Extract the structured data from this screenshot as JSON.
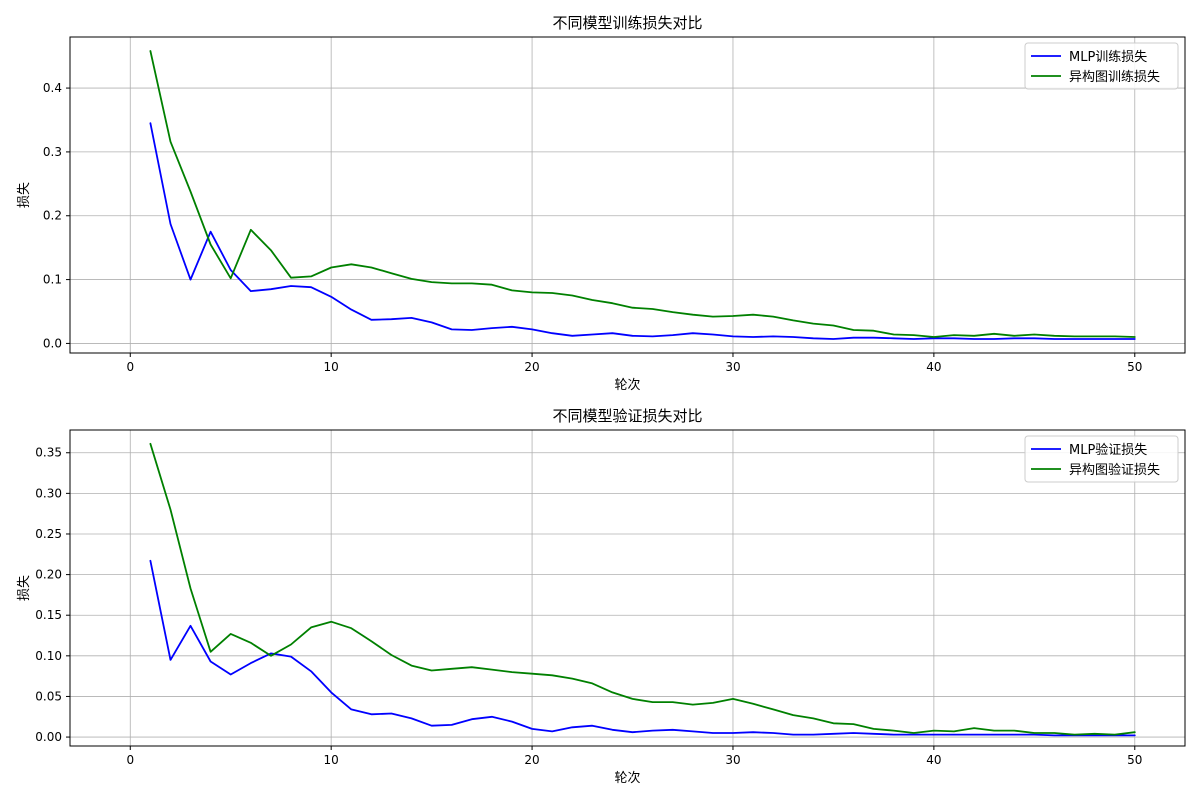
{
  "chart_data": [
    {
      "type": "line",
      "title": "不同模型训练损失对比",
      "xlabel": "轮次",
      "ylabel": "损失",
      "xlim": [
        -3,
        52.5
      ],
      "ylim": [
        -0.015,
        0.48
      ],
      "xticks": [
        0,
        10,
        20,
        30,
        40,
        50
      ],
      "yticks": [
        0.0,
        0.1,
        0.2,
        0.3,
        0.4
      ],
      "ytick_labels": [
        "0.0",
        "0.1",
        "0.2",
        "0.3",
        "0.4"
      ],
      "grid": true,
      "legend_position": "top-right",
      "x": [
        1,
        2,
        3,
        4,
        5,
        6,
        7,
        8,
        9,
        10,
        11,
        12,
        13,
        14,
        15,
        16,
        17,
        18,
        19,
        20,
        21,
        22,
        23,
        24,
        25,
        26,
        27,
        28,
        29,
        30,
        31,
        32,
        33,
        34,
        35,
        36,
        37,
        38,
        39,
        40,
        41,
        42,
        43,
        44,
        45,
        46,
        47,
        48,
        49,
        50
      ],
      "series": [
        {
          "name": "MLP训练损失",
          "color": "#0000ff",
          "values": [
            0.345,
            0.187,
            0.1,
            0.175,
            0.115,
            0.082,
            0.085,
            0.09,
            0.088,
            0.073,
            0.053,
            0.037,
            0.038,
            0.04,
            0.033,
            0.022,
            0.021,
            0.024,
            0.026,
            0.022,
            0.016,
            0.012,
            0.014,
            0.016,
            0.012,
            0.011,
            0.013,
            0.016,
            0.014,
            0.011,
            0.01,
            0.011,
            0.01,
            0.008,
            0.007,
            0.009,
            0.009,
            0.008,
            0.007,
            0.008,
            0.008,
            0.007,
            0.007,
            0.008,
            0.008,
            0.007,
            0.007,
            0.007,
            0.007,
            0.007
          ]
        },
        {
          "name": "异构图训练损失",
          "color": "#008000",
          "values": [
            0.458,
            0.316,
            0.238,
            0.155,
            0.102,
            0.178,
            0.146,
            0.103,
            0.105,
            0.119,
            0.124,
            0.119,
            0.11,
            0.101,
            0.096,
            0.094,
            0.094,
            0.092,
            0.083,
            0.08,
            0.079,
            0.075,
            0.068,
            0.063,
            0.056,
            0.054,
            0.049,
            0.045,
            0.042,
            0.043,
            0.045,
            0.042,
            0.036,
            0.031,
            0.028,
            0.021,
            0.02,
            0.014,
            0.013,
            0.01,
            0.013,
            0.012,
            0.015,
            0.012,
            0.014,
            0.012,
            0.011,
            0.011,
            0.011,
            0.01
          ]
        }
      ]
    },
    {
      "type": "line",
      "title": "不同模型验证损失对比",
      "xlabel": "轮次",
      "ylabel": "损失",
      "xlim": [
        -3,
        52.5
      ],
      "ylim": [
        -0.011,
        0.378
      ],
      "xticks": [
        0,
        10,
        20,
        30,
        40,
        50
      ],
      "yticks": [
        0.0,
        0.05,
        0.1,
        0.15,
        0.2,
        0.25,
        0.3,
        0.35
      ],
      "ytick_labels": [
        "0.00",
        "0.05",
        "0.10",
        "0.15",
        "0.20",
        "0.25",
        "0.30",
        "0.35"
      ],
      "grid": true,
      "legend_position": "top-right",
      "x": [
        1,
        2,
        3,
        4,
        5,
        6,
        7,
        8,
        9,
        10,
        11,
        12,
        13,
        14,
        15,
        16,
        17,
        18,
        19,
        20,
        21,
        22,
        23,
        24,
        25,
        26,
        27,
        28,
        29,
        30,
        31,
        32,
        33,
        34,
        35,
        36,
        37,
        38,
        39,
        40,
        41,
        42,
        43,
        44,
        45,
        46,
        47,
        48,
        49,
        50
      ],
      "series": [
        {
          "name": "MLP验证损失",
          "color": "#0000ff",
          "values": [
            0.217,
            0.095,
            0.137,
            0.093,
            0.077,
            0.091,
            0.103,
            0.099,
            0.081,
            0.055,
            0.034,
            0.028,
            0.029,
            0.023,
            0.014,
            0.015,
            0.022,
            0.025,
            0.019,
            0.01,
            0.007,
            0.012,
            0.014,
            0.009,
            0.006,
            0.008,
            0.009,
            0.007,
            0.005,
            0.005,
            0.006,
            0.005,
            0.003,
            0.003,
            0.004,
            0.005,
            0.004,
            0.003,
            0.003,
            0.003,
            0.003,
            0.003,
            0.003,
            0.003,
            0.003,
            0.002,
            0.002,
            0.002,
            0.002,
            0.002
          ]
        },
        {
          "name": "异构图验证损失",
          "color": "#008000",
          "values": [
            0.361,
            0.28,
            0.183,
            0.105,
            0.127,
            0.116,
            0.1,
            0.114,
            0.135,
            0.142,
            0.134,
            0.118,
            0.101,
            0.088,
            0.082,
            0.084,
            0.086,
            0.083,
            0.08,
            0.078,
            0.076,
            0.072,
            0.066,
            0.055,
            0.047,
            0.043,
            0.043,
            0.04,
            0.042,
            0.047,
            0.041,
            0.034,
            0.027,
            0.023,
            0.017,
            0.016,
            0.01,
            0.008,
            0.005,
            0.008,
            0.007,
            0.011,
            0.008,
            0.008,
            0.005,
            0.005,
            0.003,
            0.004,
            0.003,
            0.006
          ]
        }
      ]
    }
  ]
}
